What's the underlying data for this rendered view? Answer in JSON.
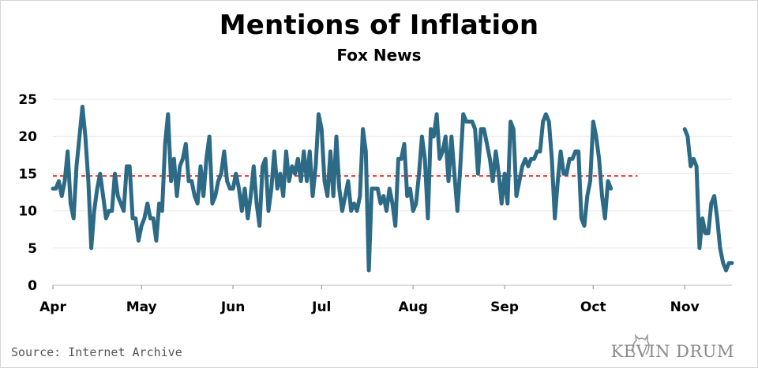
{
  "title": "Mentions of Inflation",
  "subtitle": "Fox News",
  "source": "Source: Internet Archive",
  "brand": "KEVIN DRUM",
  "colors": {
    "line": "#2c6a86",
    "reference": "#e0201b",
    "grid": "#e6e6e6"
  },
  "chart_data": {
    "type": "line",
    "title": "Mentions of Inflation",
    "subtitle": "Fox News",
    "xlabel": "",
    "ylabel": "",
    "ylim": [
      0,
      25
    ],
    "yticks": [
      0,
      5,
      10,
      15,
      20,
      25
    ],
    "xlim": [
      "2021-04-01",
      "2021-11-17"
    ],
    "xticks": [
      {
        "label": "Apr",
        "date": "2021-04-01"
      },
      {
        "label": "May",
        "date": "2021-05-01"
      },
      {
        "label": "Jun",
        "date": "2021-06-01"
      },
      {
        "label": "Jul",
        "date": "2021-07-01"
      },
      {
        "label": "Aug",
        "date": "2021-08-01"
      },
      {
        "label": "Sep",
        "date": "2021-09-01"
      },
      {
        "label": "Oct",
        "date": "2021-10-01"
      },
      {
        "label": "Nov",
        "date": "2021-11-01"
      }
    ],
    "grid": true,
    "reference_line": {
      "y": 14.7,
      "style": "dashed"
    },
    "series": [
      {
        "segments": [
          {
            "start": "2021-04-01",
            "values": [
              13,
              13,
              14,
              12,
              14,
              18,
              11,
              9,
              16,
              20,
              24,
              20,
              14,
              5,
              10,
              13,
              15,
              12,
              9,
              10,
              10,
              15,
              12,
              11,
              10,
              16,
              16,
              9,
              9,
              6,
              8,
              9,
              11,
              9,
              9,
              6,
              11,
              10,
              19,
              23,
              14,
              17,
              12,
              16,
              17,
              19,
              14,
              14,
              12,
              11,
              16,
              12,
              17,
              20,
              11,
              12,
              14,
              15,
              18,
              14,
              13,
              13,
              15,
              13,
              10,
              13,
              9,
              12,
              16,
              11,
              8,
              16,
              17,
              10,
              13,
              18,
              13,
              15,
              12,
              18,
              14,
              16,
              15,
              17,
              14,
              18,
              14,
              18,
              12,
              16,
              23,
              21,
              14,
              12,
              18,
              12,
              20,
              13,
              10,
              12,
              14,
              10,
              11,
              10,
              12,
              21,
              18,
              2,
              13,
              13,
              13,
              11,
              12,
              10,
              13,
              11,
              8,
              17,
              17,
              19,
              12,
              13,
              10,
              11,
              15,
              20,
              17,
              9,
              21,
              20,
              23,
              17,
              18,
              20,
              14,
              20,
              15,
              10,
              16,
              23,
              22,
              22,
              22,
              21,
              15,
              21,
              21,
              19,
              17,
              14,
              18,
              15,
              11,
              15,
              11,
              22,
              21,
              12,
              14,
              16,
              17,
              16,
              17,
              17,
              18,
              18,
              22,
              23,
              22,
              17,
              9,
              14,
              18,
              15,
              15,
              17,
              17,
              18,
              18,
              9,
              8,
              12,
              14,
              22,
              20,
              17,
              12,
              9,
              14,
              13
            ]
          },
          {
            "start": "2021-11-01",
            "values": [
              21,
              20,
              16,
              17,
              16,
              5,
              9,
              7,
              7,
              11,
              12,
              9,
              5,
              3,
              2,
              3,
              3
            ]
          }
        ]
      }
    ]
  }
}
